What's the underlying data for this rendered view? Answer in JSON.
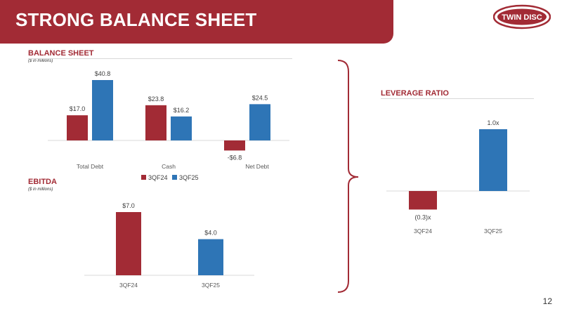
{
  "header": {
    "title": "STRONG BALANCE SHEET",
    "logo_text": "TWIN DISC"
  },
  "colors": {
    "brand_red": "#a22b35",
    "series_3QF24": "#a22b35",
    "series_3QF25": "#2e75b6"
  },
  "page_number": "12",
  "chart_data": [
    {
      "id": "balance_sheet",
      "type": "bar",
      "title": "BALANCE SHEET",
      "subtitle": "($ in millions)",
      "categories": [
        "Total Debt",
        "Cash",
        "Net Debt"
      ],
      "series": [
        {
          "name": "3QF24",
          "values": [
            17.0,
            23.8,
            -6.8
          ],
          "labels": [
            "$17.0",
            "$23.8",
            "-$6.8"
          ]
        },
        {
          "name": "3QF25",
          "values": [
            40.8,
            16.2,
            24.5
          ],
          "labels": [
            "$40.8",
            "$16.2",
            "$24.5"
          ]
        }
      ],
      "legend_position": "bottom",
      "grid": false
    },
    {
      "id": "ebitda",
      "type": "bar",
      "title": "EBITDA",
      "subtitle": "($ in millions)",
      "categories": [
        "3QF24",
        "3QF25"
      ],
      "values": [
        7.0,
        4.0
      ],
      "labels": [
        "$7.0",
        "$4.0"
      ],
      "grid": false
    },
    {
      "id": "leverage",
      "type": "bar",
      "title": "LEVERAGE RATIO",
      "categories": [
        "3QF24",
        "3QF25"
      ],
      "values": [
        -0.3,
        1.0
      ],
      "labels": [
        "(0.3)x",
        "1.0x"
      ],
      "grid": false
    }
  ]
}
